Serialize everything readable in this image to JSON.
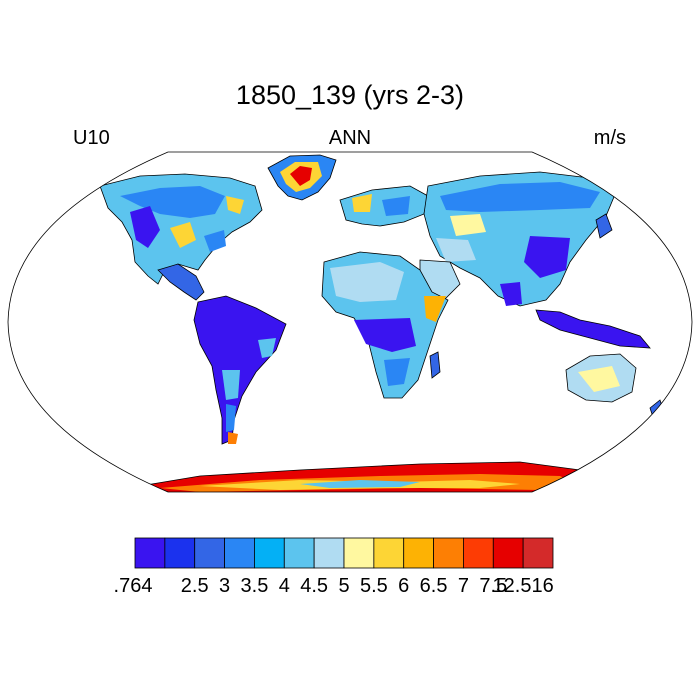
{
  "title": "1850_139 (yrs 2-3)",
  "left_label": "U10",
  "center_label": "ANN",
  "right_label": "m/s",
  "legend": {
    "colors": [
      "#3a14f0",
      "#1b32ee",
      "#3366e6",
      "#2a86f4",
      "#04b0f5",
      "#5cc4ee",
      "#b0dcf2",
      "#fff8a0",
      "#fdd535",
      "#fdb204",
      "#fd7f04",
      "#fd3c04",
      "#e60000",
      "#d42a2a"
    ],
    "labels": [
      ".764",
      "2.5",
      "3",
      "3.5",
      "4",
      "4.5",
      "5",
      "5.5",
      "6",
      "6.5",
      "7",
      "7.5",
      "12.516"
    ]
  },
  "map": {
    "projection": "Robinson",
    "ocean_color": "#ffffff",
    "coastline_color": "#000000"
  }
}
